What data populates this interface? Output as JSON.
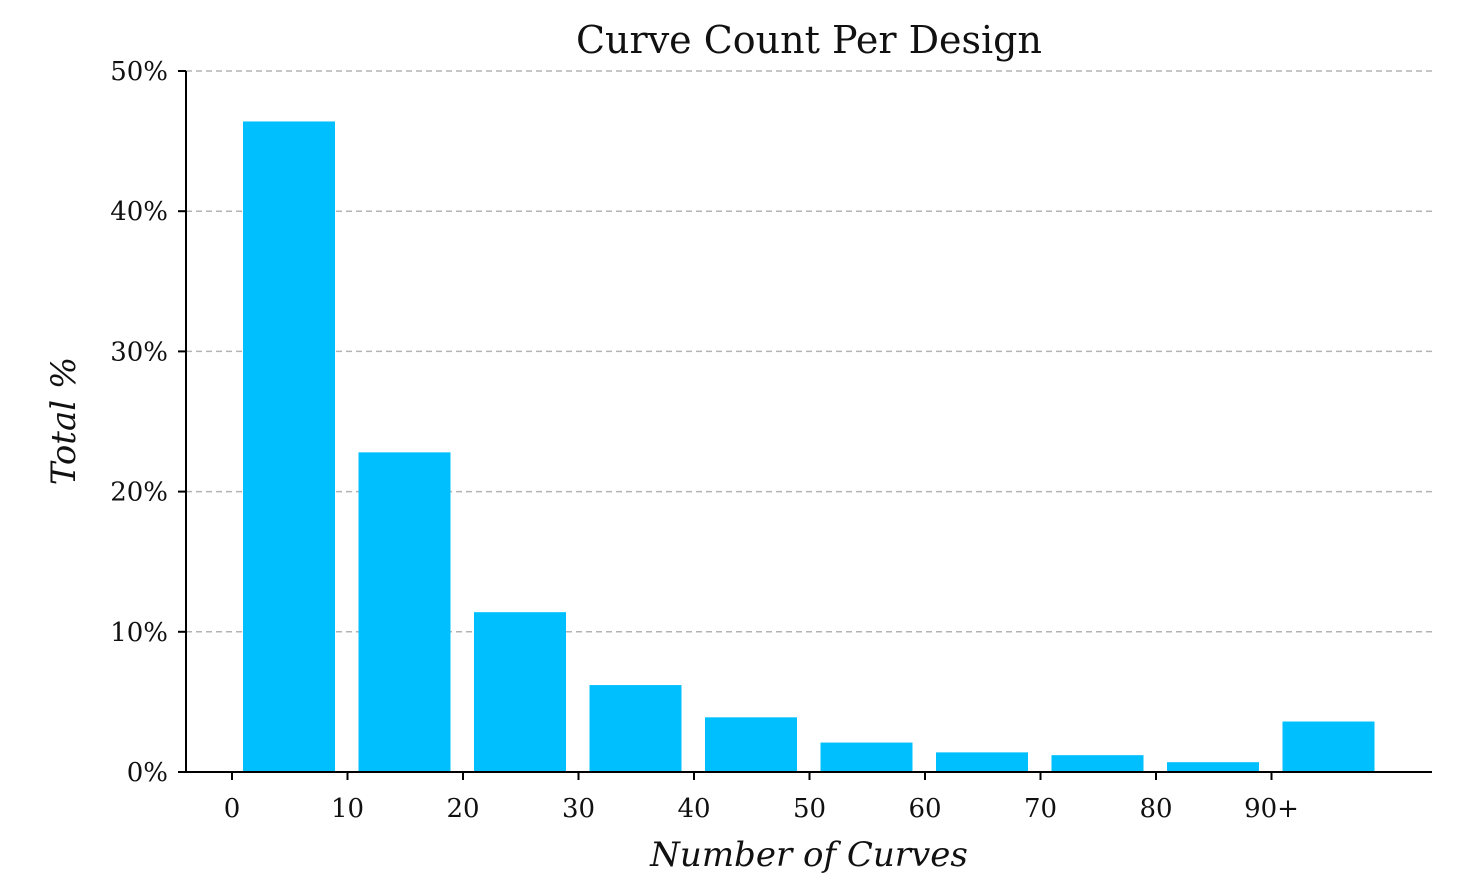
{
  "chart_data": {
    "type": "bar",
    "title": "Curve Count Per Design",
    "xlabel": "Number of Curves",
    "ylabel": "Total %",
    "categories": [
      "0–10",
      "10–20",
      "20–30",
      "30–40",
      "40–50",
      "50–60",
      "60–70",
      "70–80",
      "80–90",
      "90+"
    ],
    "x_tick_labels": [
      "0",
      "10",
      "20",
      "30",
      "40",
      "50",
      "60",
      "70",
      "80",
      "90+"
    ],
    "values": [
      46.4,
      22.8,
      11.4,
      6.2,
      3.9,
      2.1,
      1.4,
      1.2,
      0.7,
      3.6
    ],
    "ylim": [
      0,
      50
    ],
    "y_ticks": [
      0,
      10,
      20,
      30,
      40,
      50
    ],
    "y_tick_labels": [
      "0%",
      "10%",
      "20%",
      "30%",
      "40%",
      "50%"
    ],
    "grid": true,
    "colors": {
      "bar": "#00BFFF"
    }
  }
}
